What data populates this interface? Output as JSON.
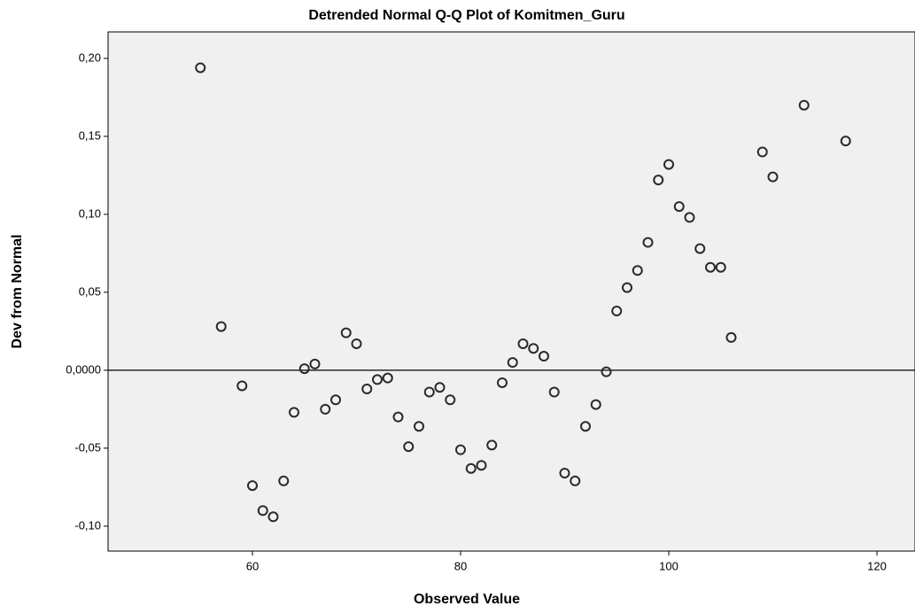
{
  "chart_data": {
    "type": "scatter",
    "title": "Detrended Normal Q-Q Plot of Komitmen_Guru",
    "x_label": "Observed Value",
    "y_label": "Dev from Normal",
    "color": "#2a2a2a",
    "background": "#f0f0f0",
    "reference_line": 0,
    "x": [
      55,
      57,
      59,
      60,
      61,
      62,
      63,
      64,
      65,
      66,
      67,
      68,
      69,
      70,
      71,
      72,
      73,
      74,
      75,
      76,
      77,
      78,
      79,
      80,
      81,
      82,
      83,
      84,
      85,
      86,
      87,
      88,
      89,
      90,
      91,
      92,
      93,
      94,
      95,
      96,
      97,
      98,
      99,
      100,
      101,
      102,
      103,
      104,
      105,
      106,
      109,
      110,
      113,
      117
    ],
    "values": [
      0.194,
      0.028,
      -0.01,
      -0.074,
      -0.09,
      -0.094,
      -0.071,
      -0.027,
      0.001,
      0.004,
      -0.025,
      -0.019,
      0.024,
      0.017,
      -0.012,
      -0.006,
      -0.005,
      -0.03,
      -0.049,
      -0.036,
      -0.014,
      -0.011,
      -0.019,
      -0.051,
      -0.063,
      -0.061,
      -0.048,
      -0.008,
      0.005,
      0.017,
      0.014,
      0.009,
      -0.014,
      -0.066,
      -0.071,
      -0.036,
      -0.022,
      -0.001,
      0.038,
      0.053,
      0.064,
      0.082,
      0.122,
      0.132,
      0.105,
      0.098,
      0.078,
      0.066,
      0.066,
      0.021,
      0.14,
      0.124,
      0.17,
      0.147
    ],
    "xlim": [
      46.13,
      123.66
    ],
    "ylim": [
      -0.116,
      0.217
    ],
    "xticks": [
      60,
      80,
      100,
      120
    ],
    "yticks": [
      {
        "value": 0.2,
        "label": "0,20"
      },
      {
        "value": 0.15,
        "label": "0,15"
      },
      {
        "value": 0.1,
        "label": "0,10"
      },
      {
        "value": 0.05,
        "label": "0,05"
      },
      {
        "value": 0,
        "label": "0,0000"
      },
      {
        "value": -0.05,
        "label": "-0,05"
      },
      {
        "value": -0.1,
        "label": "-0,10"
      }
    ]
  }
}
